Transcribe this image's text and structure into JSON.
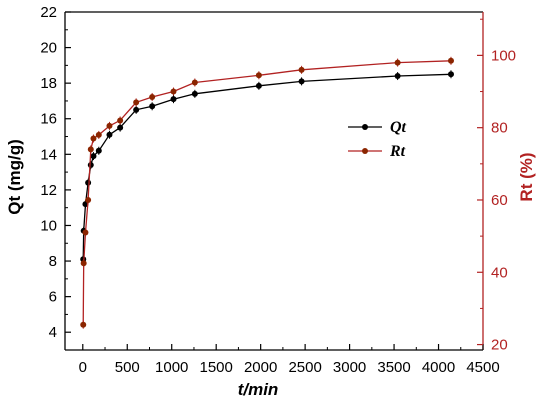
{
  "chart_data": {
    "type": "line",
    "xlabel": "t/min",
    "ylabel_left": "Qt (mg/g)",
    "ylabel_right": "Rt (%)",
    "xlim": [
      -200,
      4500
    ],
    "ylim_left": [
      3,
      22
    ],
    "ylim_right": [
      18.5,
      112.0
    ],
    "x_ticks": [
      0,
      500,
      1000,
      1500,
      2000,
      2500,
      3000,
      3500,
      4000,
      4500
    ],
    "y_left_ticks": [
      4,
      6,
      8,
      10,
      12,
      14,
      16,
      18,
      20,
      22
    ],
    "y_right_ticks": [
      20,
      40,
      60,
      80,
      100
    ],
    "legend_position": "center-right",
    "colors": {
      "Qt": "#000000",
      "Rt": "#b22222",
      "right_axis": "#b22222"
    },
    "series": [
      {
        "name": "Qt",
        "axis": "left",
        "x": [
          5,
          10,
          30,
          60,
          90,
          120,
          180,
          300,
          420,
          600,
          780,
          1020,
          1260,
          1980,
          2460,
          3540,
          4140
        ],
        "y": [
          8.1,
          9.7,
          11.2,
          12.4,
          13.4,
          13.9,
          14.2,
          15.1,
          15.5,
          16.5,
          16.7,
          17.1,
          17.4,
          17.85,
          18.1,
          18.4,
          18.5
        ]
      },
      {
        "name": "Rt",
        "axis": "right",
        "x": [
          5,
          10,
          30,
          60,
          90,
          120,
          180,
          300,
          420,
          600,
          780,
          1020,
          1260,
          1980,
          2460,
          3540,
          4140
        ],
        "y": [
          25.5,
          42.5,
          51.0,
          60.0,
          74.0,
          77.0,
          78.0,
          80.5,
          82.0,
          87.0,
          88.5,
          90.0,
          92.5,
          94.5,
          96.0,
          98.0,
          98.5
        ]
      }
    ]
  }
}
